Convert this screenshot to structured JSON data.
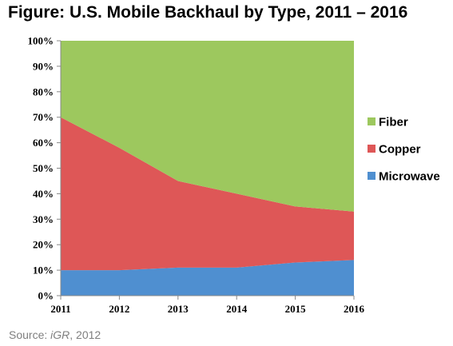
{
  "title": "Figure: U.S. Mobile Backhaul by Type, 2011 – 2016",
  "source": {
    "prefix": "Source: ",
    "name": "iGR",
    "suffix": ", 2012"
  },
  "chart_data": {
    "type": "area",
    "stacked": true,
    "title": "Figure: U.S. Mobile Backhaul by Type, 2011 – 2016",
    "xlabel": "",
    "ylabel": "",
    "x": [
      "2011",
      "2012",
      "2013",
      "2014",
      "2015",
      "2016"
    ],
    "ylim": [
      0,
      100
    ],
    "y_ticks": [
      "0%",
      "10%",
      "20%",
      "30%",
      "40%",
      "50%",
      "60%",
      "70%",
      "80%",
      "90%",
      "100%"
    ],
    "grid": false,
    "legend_position": "right",
    "series": [
      {
        "name": "Microwave",
        "color": "#4f8fd0",
        "values": [
          10,
          10,
          11,
          11,
          13,
          14
        ]
      },
      {
        "name": "Copper",
        "color": "#de5757",
        "values": [
          60,
          48,
          34,
          29,
          22,
          19
        ]
      },
      {
        "name": "Fiber",
        "color": "#9dc85e",
        "values": [
          30,
          42,
          55,
          60,
          65,
          67
        ]
      }
    ],
    "legend_order": [
      "Fiber",
      "Copper",
      "Microwave"
    ]
  }
}
